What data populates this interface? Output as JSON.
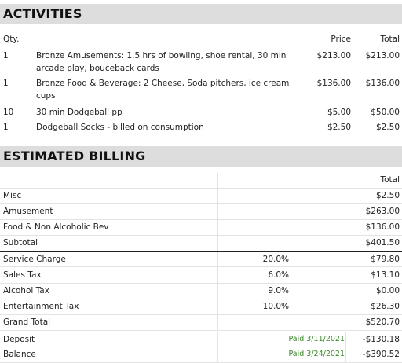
{
  "activities": {
    "title": "ACTIVITIES",
    "headers": {
      "qty": "Qty.",
      "price": "Price",
      "total": "Total"
    },
    "rows": [
      {
        "qty": "1",
        "desc": "Bronze Amusements: 1.5 hrs of bowling, shoe rental, 30 min arcade play, bouceback cards",
        "price": "$213.00",
        "total": "$213.00"
      },
      {
        "qty": "1",
        "desc": "Bronze Food & Beverage: 2 Cheese, Soda pitchers, ice cream cups",
        "price": "$136.00",
        "total": "$136.00"
      },
      {
        "qty": "10",
        "desc": "30 min Dodgeball pp",
        "price": "$5.00",
        "total": "$50.00"
      },
      {
        "qty": "1",
        "desc": "Dodgeball Socks - billed on consumption",
        "price": "$2.50",
        "total": "$2.50"
      }
    ]
  },
  "billing": {
    "title": "ESTIMATED BILLING",
    "total_header": "Total",
    "rows": [
      {
        "label": "Misc",
        "pct": "",
        "paid": "",
        "amount": "$2.50"
      },
      {
        "label": "Amusement",
        "pct": "",
        "paid": "",
        "amount": "$263.00"
      },
      {
        "label": "Food & Non Alcoholic Bev",
        "pct": "",
        "paid": "",
        "amount": "$136.00"
      },
      {
        "label": "Subtotal",
        "pct": "",
        "paid": "",
        "amount": "$401.50"
      },
      {
        "label": "Service Charge",
        "pct": "20.0%",
        "paid": "",
        "amount": "$79.80"
      },
      {
        "label": "Sales Tax",
        "pct": "6.0%",
        "paid": "",
        "amount": "$13.10"
      },
      {
        "label": "Alcohol Tax",
        "pct": "9.0%",
        "paid": "",
        "amount": "$0.00"
      },
      {
        "label": "Entertainment Tax",
        "pct": "10.0%",
        "paid": "",
        "amount": "$26.30"
      },
      {
        "label": "Grand Total",
        "pct": "",
        "paid": "",
        "amount": "$520.70"
      },
      {
        "label": "Deposit",
        "pct": "",
        "paid": "Paid 3/11/2021",
        "amount": "-$130.18"
      },
      {
        "label": "Balance",
        "pct": "",
        "paid": "Paid 3/24/2021",
        "amount": "-$390.52"
      }
    ]
  }
}
